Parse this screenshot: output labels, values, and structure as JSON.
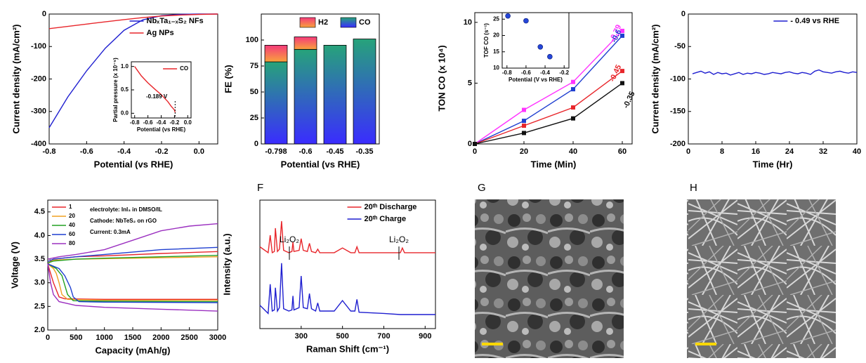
{
  "chart_data": [
    {
      "type": "line",
      "xlabel": "Potential (vs RHE)",
      "ylabel": "Current density (mA/cm²)",
      "xlim": [
        -0.8,
        0.1
      ],
      "ylim": [
        -400,
        0
      ],
      "xticks": [
        -0.8,
        -0.6,
        -0.4,
        -0.2,
        {
          "value": 0,
          "label": "0.0"
        }
      ],
      "yticks": [
        -400,
        -300,
        -200,
        -100,
        0
      ],
      "legend": "upper right",
      "x": [
        -0.8,
        -0.7,
        -0.6,
        -0.5,
        -0.4,
        -0.3,
        -0.2,
        -0.1,
        0,
        0.1
      ],
      "series": [
        {
          "name": "NbₓTa₁₋ₓS₂ NFs",
          "color": "#1f1fd0",
          "values": [
            -350,
            -255,
            -175,
            -105,
            -50,
            -18,
            -5,
            -1,
            0,
            0
          ]
        },
        {
          "name": "Ag NPs",
          "color": "#e8262b",
          "values": [
            -45,
            -38,
            -31,
            -24,
            -17,
            -11,
            -6,
            -3,
            -1,
            0
          ]
        }
      ],
      "inset": {
        "type": "line",
        "xlabel": "Potential (vs RHE)",
        "ylabel": "Partial pressure (x 10⁻⁵)",
        "xlim": [
          -0.85,
          0.05
        ],
        "ylim": [
          -0.1,
          1.1
        ],
        "xticks": [
          -0.8,
          -0.6,
          -0.4,
          -0.2,
          {
            "value": 0,
            "label": "0.0"
          }
        ],
        "yticks": [
          {
            "value": 0,
            "label": "0.0"
          },
          0.5,
          {
            "value": 1,
            "label": "1.0"
          }
        ],
        "legend": "upper right",
        "x": [
          -0.8,
          -0.75,
          -0.7,
          -0.6,
          -0.5,
          -0.4,
          -0.3,
          -0.25,
          -0.2,
          -0.19
        ],
        "series": [
          {
            "name": "CO",
            "color": "#e8262b",
            "values": [
              1.0,
              0.9,
              0.8,
              0.65,
              0.52,
              0.4,
              0.25,
              0.15,
              0.07,
              0.02
            ]
          }
        ],
        "annotations": [
          "-0.189 V"
        ]
      }
    },
    {
      "type": "bar",
      "xlabel": "Potential (vs RHE)",
      "ylabel": "FE (%)",
      "categories": [
        "-0.798",
        "-0.6",
        "-0.45",
        "-0.35"
      ],
      "ylim": [
        0,
        125
      ],
      "yticks": [
        0,
        25,
        50,
        75,
        100
      ],
      "legend": "top",
      "series": [
        {
          "name": "CO",
          "color": [
            "#27a37a",
            "#3a2cff"
          ],
          "values": [
            79,
            91,
            95,
            101
          ]
        },
        {
          "name": "H2",
          "color": [
            "#f43a7a",
            "#f9a23c"
          ],
          "values": [
            16,
            12,
            0,
            0
          ]
        }
      ]
    },
    {
      "type": "line",
      "markers": true,
      "xlabel": "Time (Min)",
      "ylabel": "TON CO (x 10⁴)",
      "xlim": [
        0,
        64
      ],
      "ylim": [
        0,
        10.8
      ],
      "xticks": [
        0,
        20,
        40,
        60
      ],
      "yticks": [
        0,
        5,
        10
      ],
      "legend": "line end",
      "x": [
        0,
        20,
        40,
        60
      ],
      "series": [
        {
          "name": "-0.79",
          "color": "#ff33ff",
          "values": [
            0,
            2.8,
            5.1,
            9.3
          ]
        },
        {
          "name": "-0.6",
          "color": "#1f3fd0",
          "values": [
            0,
            1.9,
            4.5,
            8.9
          ]
        },
        {
          "name": "-0.45",
          "color": "#e8262b",
          "values": [
            0,
            1.5,
            3.0,
            6.0
          ]
        },
        {
          "name": "-0.35",
          "color": "#111111",
          "values": [
            0,
            0.9,
            2.1,
            5.0
          ]
        }
      ],
      "inset": {
        "type": "scatter",
        "xlabel": "Potential (V vs RHE)",
        "ylabel": "TOF CO (s⁻¹)",
        "xlim": [
          -0.85,
          -0.15
        ],
        "ylim": [
          10,
          27
        ],
        "xticks": [
          -0.8,
          -0.6,
          -0.4,
          -0.2
        ],
        "yticks": [
          10,
          15,
          20,
          25
        ],
        "x": [
          -0.79,
          -0.6,
          -0.45,
          -0.35
        ],
        "values": [
          26,
          24.5,
          16.5,
          13.5
        ],
        "color": "#2546d8"
      }
    },
    {
      "type": "line",
      "xlabel": "Time (Hr)",
      "ylabel": "Current density (mA/cm²)",
      "xlim": [
        0,
        40
      ],
      "ylim": [
        -200,
        0
      ],
      "xticks": [
        0,
        8,
        16,
        24,
        32,
        40
      ],
      "yticks": [
        -200,
        -150,
        -100,
        -50,
        0
      ],
      "legend": "upper right",
      "x": [
        1,
        2,
        3,
        4,
        5,
        6,
        7,
        8,
        9,
        10,
        11,
        12,
        13,
        14,
        15,
        16,
        17,
        18,
        19,
        20,
        21,
        22,
        23,
        24,
        25,
        26,
        27,
        28,
        29,
        30,
        31,
        32,
        33,
        34,
        35,
        36,
        37,
        38,
        39,
        40
      ],
      "series": [
        {
          "name": "- 0.49 vs RHE",
          "color": "#1f1fd0",
          "values": [
            -92,
            -90,
            -88,
            -91,
            -89,
            -93,
            -90,
            -92,
            -91,
            -94,
            -92,
            -90,
            -93,
            -91,
            -92,
            -90,
            -91,
            -93,
            -92,
            -90,
            -91,
            -92,
            -90,
            -89,
            -91,
            -92,
            -90,
            -91,
            -93,
            -88,
            -86,
            -89,
            -90,
            -91,
            -89,
            -88,
            -90,
            -91,
            -89,
            -90
          ]
        }
      ]
    },
    {
      "type": "line",
      "xlabel": "Capacity (mAh/g)",
      "ylabel": "Voltage (V)",
      "xlim": [
        0,
        3000
      ],
      "ylim": [
        2,
        4.75
      ],
      "xticks": [
        0,
        500,
        1000,
        1500,
        2000,
        2500,
        3000
      ],
      "yticks": [
        {
          "value": 2,
          "label": "2.0"
        },
        2.5,
        {
          "value": 3,
          "label": "3.0"
        },
        3.5,
        {
          "value": 4,
          "label": "4.0"
        },
        4.5
      ],
      "legend": "upper left",
      "annotations": [
        "electrolyte: InI₃ in DMSO/IL",
        "Cathode: NbTeS₂ on rGO",
        "Current: 0.3mA"
      ],
      "series": [
        {
          "name": "1",
          "color": "#e8262b",
          "x": [
            0,
            50,
            100,
            150,
            200,
            300,
            1000,
            3000,
            null,
            0,
            100,
            500,
            1000,
            2000,
            3000
          ],
          "values": [
            3.4,
            3.2,
            3.0,
            2.85,
            2.7,
            2.66,
            2.65,
            2.65,
            null,
            3.4,
            3.5,
            3.55,
            3.57,
            3.62,
            3.66
          ]
        },
        {
          "name": "20",
          "color": "#f0a020",
          "x": [
            0,
            100,
            150,
            200,
            250,
            350,
            1000,
            3000,
            null,
            0,
            100,
            500,
            1000,
            2000,
            3000
          ],
          "values": [
            3.4,
            3.3,
            3.2,
            3.0,
            2.75,
            2.65,
            2.63,
            2.63,
            null,
            3.45,
            3.48,
            3.5,
            3.51,
            3.53,
            3.55
          ]
        },
        {
          "name": "40",
          "color": "#22a022",
          "x": [
            0,
            150,
            250,
            300,
            350,
            450,
            1000,
            3000,
            null,
            0,
            100,
            500,
            1000,
            2000,
            3000
          ],
          "values": [
            3.4,
            3.3,
            3.15,
            2.95,
            2.75,
            2.62,
            2.61,
            2.6,
            null,
            3.42,
            3.46,
            3.5,
            3.52,
            3.55,
            3.58
          ]
        },
        {
          "name": "60",
          "color": "#1f3fd0",
          "x": [
            0,
            200,
            300,
            400,
            450,
            550,
            1000,
            3000,
            null,
            0,
            100,
            500,
            1000,
            2000,
            3000
          ],
          "values": [
            3.4,
            3.3,
            3.15,
            2.9,
            2.7,
            2.6,
            2.59,
            2.58,
            null,
            3.45,
            3.5,
            3.55,
            3.6,
            3.7,
            3.75
          ]
        },
        {
          "name": "80",
          "color": "#9b30c0",
          "x": [
            0,
            50,
            100,
            200,
            500,
            1000,
            2000,
            3000,
            null,
            0,
            200,
            500,
            1000,
            1500,
            2000,
            2500,
            3000
          ],
          "values": [
            3.4,
            3.0,
            2.75,
            2.6,
            2.52,
            2.48,
            2.44,
            2.4,
            null,
            3.5,
            3.55,
            3.6,
            3.7,
            3.9,
            4.1,
            4.2,
            4.25
          ]
        }
      ]
    },
    {
      "type": "line",
      "panel_label": "F",
      "xlabel": "Raman Shift (cm⁻¹)",
      "ylabel": "Intensity (a.u.)",
      "xlim": [
        100,
        950
      ],
      "ylim": [
        0,
        11
      ],
      "xticks": [
        300,
        500,
        700,
        900
      ],
      "legend": "upper right",
      "annotations": [
        "Li₂O₂",
        "Li₂O₂"
      ],
      "x": [
        100,
        140,
        150,
        160,
        170,
        175,
        185,
        195,
        205,
        215,
        240,
        255,
        260,
        265,
        290,
        300,
        310,
        330,
        340,
        350,
        370,
        380,
        390,
        460,
        500,
        540,
        560,
        570,
        580,
        700,
        780,
        790,
        800,
        950
      ],
      "series": [
        {
          "name": "20ᵗʰ Discharge",
          "color": "#e8262b",
          "values": [
            7.0,
            6.5,
            8.0,
            6.5,
            6.6,
            8.6,
            6.6,
            6.8,
            9.2,
            6.7,
            6.5,
            6.6,
            7.4,
            6.6,
            6.7,
            7.7,
            6.7,
            6.6,
            7.3,
            6.6,
            6.5,
            6.8,
            6.5,
            6.5,
            6.9,
            6.5,
            6.5,
            7.0,
            6.5,
            6.5,
            6.5,
            6.9,
            6.5,
            6.5
          ]
        },
        {
          "name": "20ᵗʰ Charge",
          "color": "#1f1fd0",
          "values": [
            2.0,
            1.3,
            3.8,
            1.5,
            1.6,
            3.5,
            1.5,
            1.8,
            5.6,
            1.7,
            1.5,
            1.6,
            2.8,
            1.6,
            1.8,
            4.5,
            1.8,
            1.7,
            3.0,
            1.7,
            1.5,
            2.2,
            1.5,
            1.5,
            2.4,
            1.5,
            1.5,
            2.5,
            1.4,
            1.3,
            1.2,
            1.2,
            1.2,
            1.2
          ]
        }
      ]
    }
  ],
  "images": [
    {
      "panel_label": "G"
    },
    {
      "panel_label": "H"
    }
  ]
}
